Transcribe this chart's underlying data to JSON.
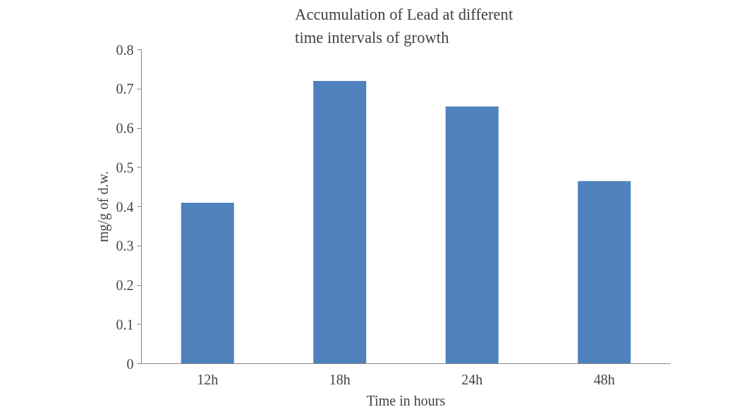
{
  "chart_data": {
    "type": "bar",
    "title": "Accumulation of  Lead at different\ntime intervals of growth",
    "xlabel": "Time in hours",
    "ylabel": "mg/g of d.w.",
    "categories": [
      "12h",
      "18h",
      "24h",
      "48h"
    ],
    "values": [
      0.41,
      0.72,
      0.655,
      0.465
    ],
    "color": "#4f81bd",
    "ylim": [
      0,
      0.8
    ],
    "yticks": [
      0,
      0.1,
      0.2,
      0.3,
      0.4,
      0.5,
      0.6,
      0.7,
      0.8
    ],
    "grid": false
  }
}
